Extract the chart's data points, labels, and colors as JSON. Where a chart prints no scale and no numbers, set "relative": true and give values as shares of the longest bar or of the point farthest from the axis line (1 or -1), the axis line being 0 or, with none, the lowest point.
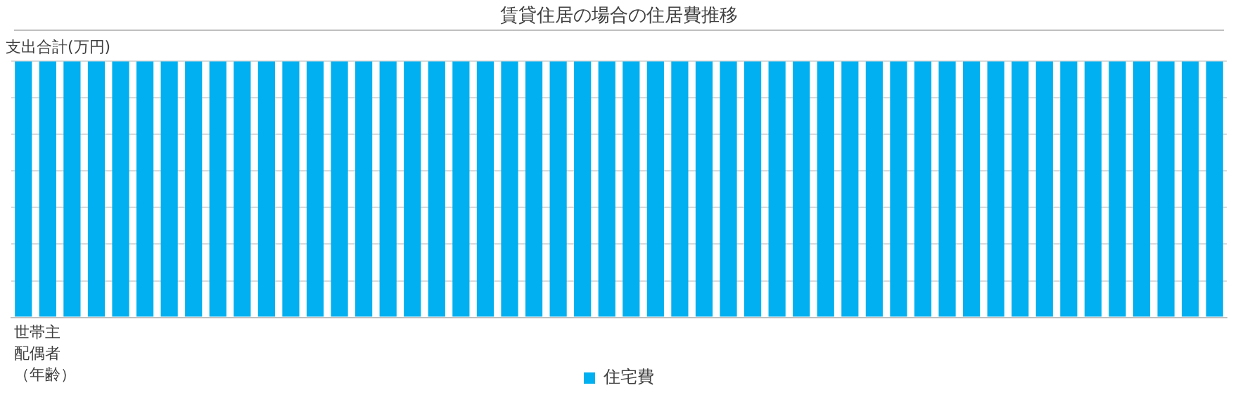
{
  "chart_data": {
    "type": "bar",
    "title": "賃貸住居の場合の住居費推移",
    "ylabel": "支出合計(万円)",
    "relative": true,
    "categories": [
      null,
      null,
      null,
      null,
      null,
      null,
      null,
      null,
      null,
      null,
      null,
      null,
      null,
      null,
      null,
      null,
      null,
      null,
      null,
      null,
      null,
      null,
      null,
      null,
      null,
      null,
      null,
      null,
      null,
      null,
      null,
      null,
      null,
      null,
      null,
      null,
      null,
      null,
      null,
      null,
      null,
      null,
      null,
      null,
      null,
      null,
      null,
      null,
      null,
      null
    ],
    "series": [
      {
        "name": "住宅費",
        "color": "#00b0f0",
        "values": [
          1,
          1,
          1,
          1,
          1,
          1,
          1,
          1,
          1,
          1,
          1,
          1,
          1,
          1,
          1,
          1,
          1,
          1,
          1,
          1,
          1,
          1,
          1,
          1,
          1,
          1,
          1,
          1,
          1,
          1,
          1,
          1,
          1,
          1,
          1,
          1,
          1,
          1,
          1,
          1,
          1,
          1,
          1,
          1,
          1,
          1,
          1,
          1,
          1,
          1
        ]
      }
    ],
    "annotations": [
      "世帯主",
      "配偶者",
      "（年齢）"
    ],
    "grid": "y",
    "legend": "bottom"
  }
}
